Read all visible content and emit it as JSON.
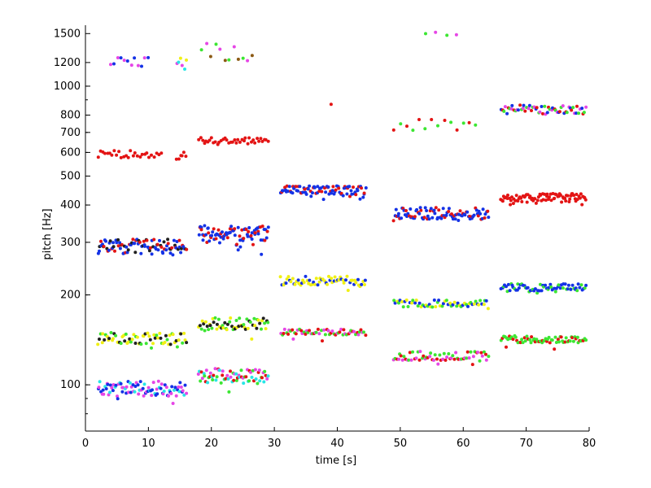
{
  "chart_data": {
    "type": "scatter",
    "title": "",
    "xlabel": "time [s]",
    "ylabel": "pitch [Hz]",
    "xlim": [
      0,
      80
    ],
    "ylim": [
      70,
      1600
    ],
    "yscale": "log",
    "grid": false,
    "legend": "none",
    "x_ticks": [
      0,
      10,
      20,
      30,
      40,
      50,
      60,
      70,
      80
    ],
    "y_ticks": [
      100,
      200,
      300,
      400,
      500,
      600,
      700,
      800,
      1000,
      1200,
      1500
    ],
    "colors": {
      "red": "#e31414",
      "blue": "#1432e6",
      "green": "#3ce632",
      "yellow": "#f0f014",
      "magenta": "#e646e6",
      "cyan": "#28e6e6",
      "olive": "#8c5a14",
      "black": "#202020"
    },
    "segments": [
      {
        "x_start": 2,
        "x_end": 16,
        "y": 97,
        "spread": 0.025,
        "colors": [
          "blue",
          "magenta",
          "cyan",
          "blue",
          "magenta"
        ],
        "count": 90
      },
      {
        "x_start": 2,
        "x_end": 16,
        "y": 143,
        "spread": 0.02,
        "colors": [
          "yellow",
          "black",
          "green",
          "yellow"
        ],
        "count": 70
      },
      {
        "x_start": 2,
        "x_end": 16,
        "y": 290,
        "spread": 0.025,
        "colors": [
          "blue",
          "blue",
          "black",
          "red"
        ],
        "count": 100
      },
      {
        "x_start": 2,
        "x_end": 12,
        "y": 592,
        "spread": 0.012,
        "colors": [
          "red"
        ],
        "count": 28
      },
      {
        "x_start": 14.5,
        "x_end": 16,
        "y": 592,
        "spread": 0.008,
        "colors": [
          "red"
        ],
        "count": 6
      },
      {
        "x_start": 4,
        "x_end": 10,
        "y": 1205,
        "spread": 0.015,
        "colors": [
          "magenta",
          "blue"
        ],
        "count": 12
      },
      {
        "x_start": 14.5,
        "x_end": 16,
        "y": 1210,
        "spread": 0.02,
        "colors": [
          "magenta",
          "cyan",
          "yellow"
        ],
        "count": 6
      },
      {
        "x_start": 18,
        "x_end": 29,
        "y": 107,
        "spread": 0.025,
        "colors": [
          "magenta",
          "cyan",
          "green",
          "red"
        ],
        "count": 70
      },
      {
        "x_start": 18,
        "x_end": 29,
        "y": 160,
        "spread": 0.02,
        "colors": [
          "yellow",
          "black",
          "green"
        ],
        "count": 60
      },
      {
        "x_start": 18,
        "x_end": 29,
        "y": 322,
        "spread": 0.025,
        "colors": [
          "blue",
          "red",
          "blue"
        ],
        "count": 90
      },
      {
        "x_start": 18,
        "x_end": 29,
        "y": 658,
        "spread": 0.01,
        "colors": [
          "red"
        ],
        "count": 38
      },
      {
        "x_start": 18.5,
        "x_end": 26.5,
        "y": 1300,
        "spread": 0.03,
        "colors": [
          "green",
          "magenta",
          "olive"
        ],
        "count": 12
      },
      {
        "x_start": 31,
        "x_end": 44.5,
        "y": 150,
        "spread": 0.01,
        "colors": [
          "magenta",
          "green",
          "red"
        ],
        "count": 60
      },
      {
        "x_start": 31,
        "x_end": 44.5,
        "y": 223,
        "spread": 0.015,
        "colors": [
          "yellow",
          "blue",
          "yellow"
        ],
        "count": 65
      },
      {
        "x_start": 31,
        "x_end": 44.5,
        "y": 448,
        "spread": 0.015,
        "colors": [
          "blue",
          "red",
          "blue"
        ],
        "count": 90
      },
      {
        "x_start": 39,
        "x_end": 39,
        "y": 870,
        "spread": 0,
        "colors": [
          "red"
        ],
        "count": 1
      },
      {
        "x_start": 49,
        "x_end": 64,
        "y": 125,
        "spread": 0.015,
        "colors": [
          "magenta",
          "green",
          "red"
        ],
        "count": 65
      },
      {
        "x_start": 49,
        "x_end": 64,
        "y": 187,
        "spread": 0.012,
        "colors": [
          "green",
          "blue",
          "yellow"
        ],
        "count": 60
      },
      {
        "x_start": 49,
        "x_end": 64,
        "y": 375,
        "spread": 0.02,
        "colors": [
          "red",
          "blue",
          "blue"
        ],
        "count": 95
      },
      {
        "x_start": 49,
        "x_end": 62,
        "y": 745,
        "spread": 0.02,
        "colors": [
          "red",
          "green"
        ],
        "count": 14
      },
      {
        "x_start": 54,
        "x_end": 59,
        "y": 1500,
        "spread": 0.005,
        "colors": [
          "green",
          "magenta"
        ],
        "count": 4
      },
      {
        "x_start": 66,
        "x_end": 79.5,
        "y": 142,
        "spread": 0.012,
        "colors": [
          "green",
          "red",
          "green"
        ],
        "count": 70
      },
      {
        "x_start": 66,
        "x_end": 79.5,
        "y": 212,
        "spread": 0.012,
        "colors": [
          "blue",
          "blue",
          "green"
        ],
        "count": 70
      },
      {
        "x_start": 66,
        "x_end": 79.5,
        "y": 423,
        "spread": 0.015,
        "colors": [
          "red"
        ],
        "count": 85
      },
      {
        "x_start": 66,
        "x_end": 79.5,
        "y": 835,
        "spread": 0.015,
        "colors": [
          "blue",
          "red",
          "green",
          "magenta"
        ],
        "count": 60
      }
    ]
  }
}
